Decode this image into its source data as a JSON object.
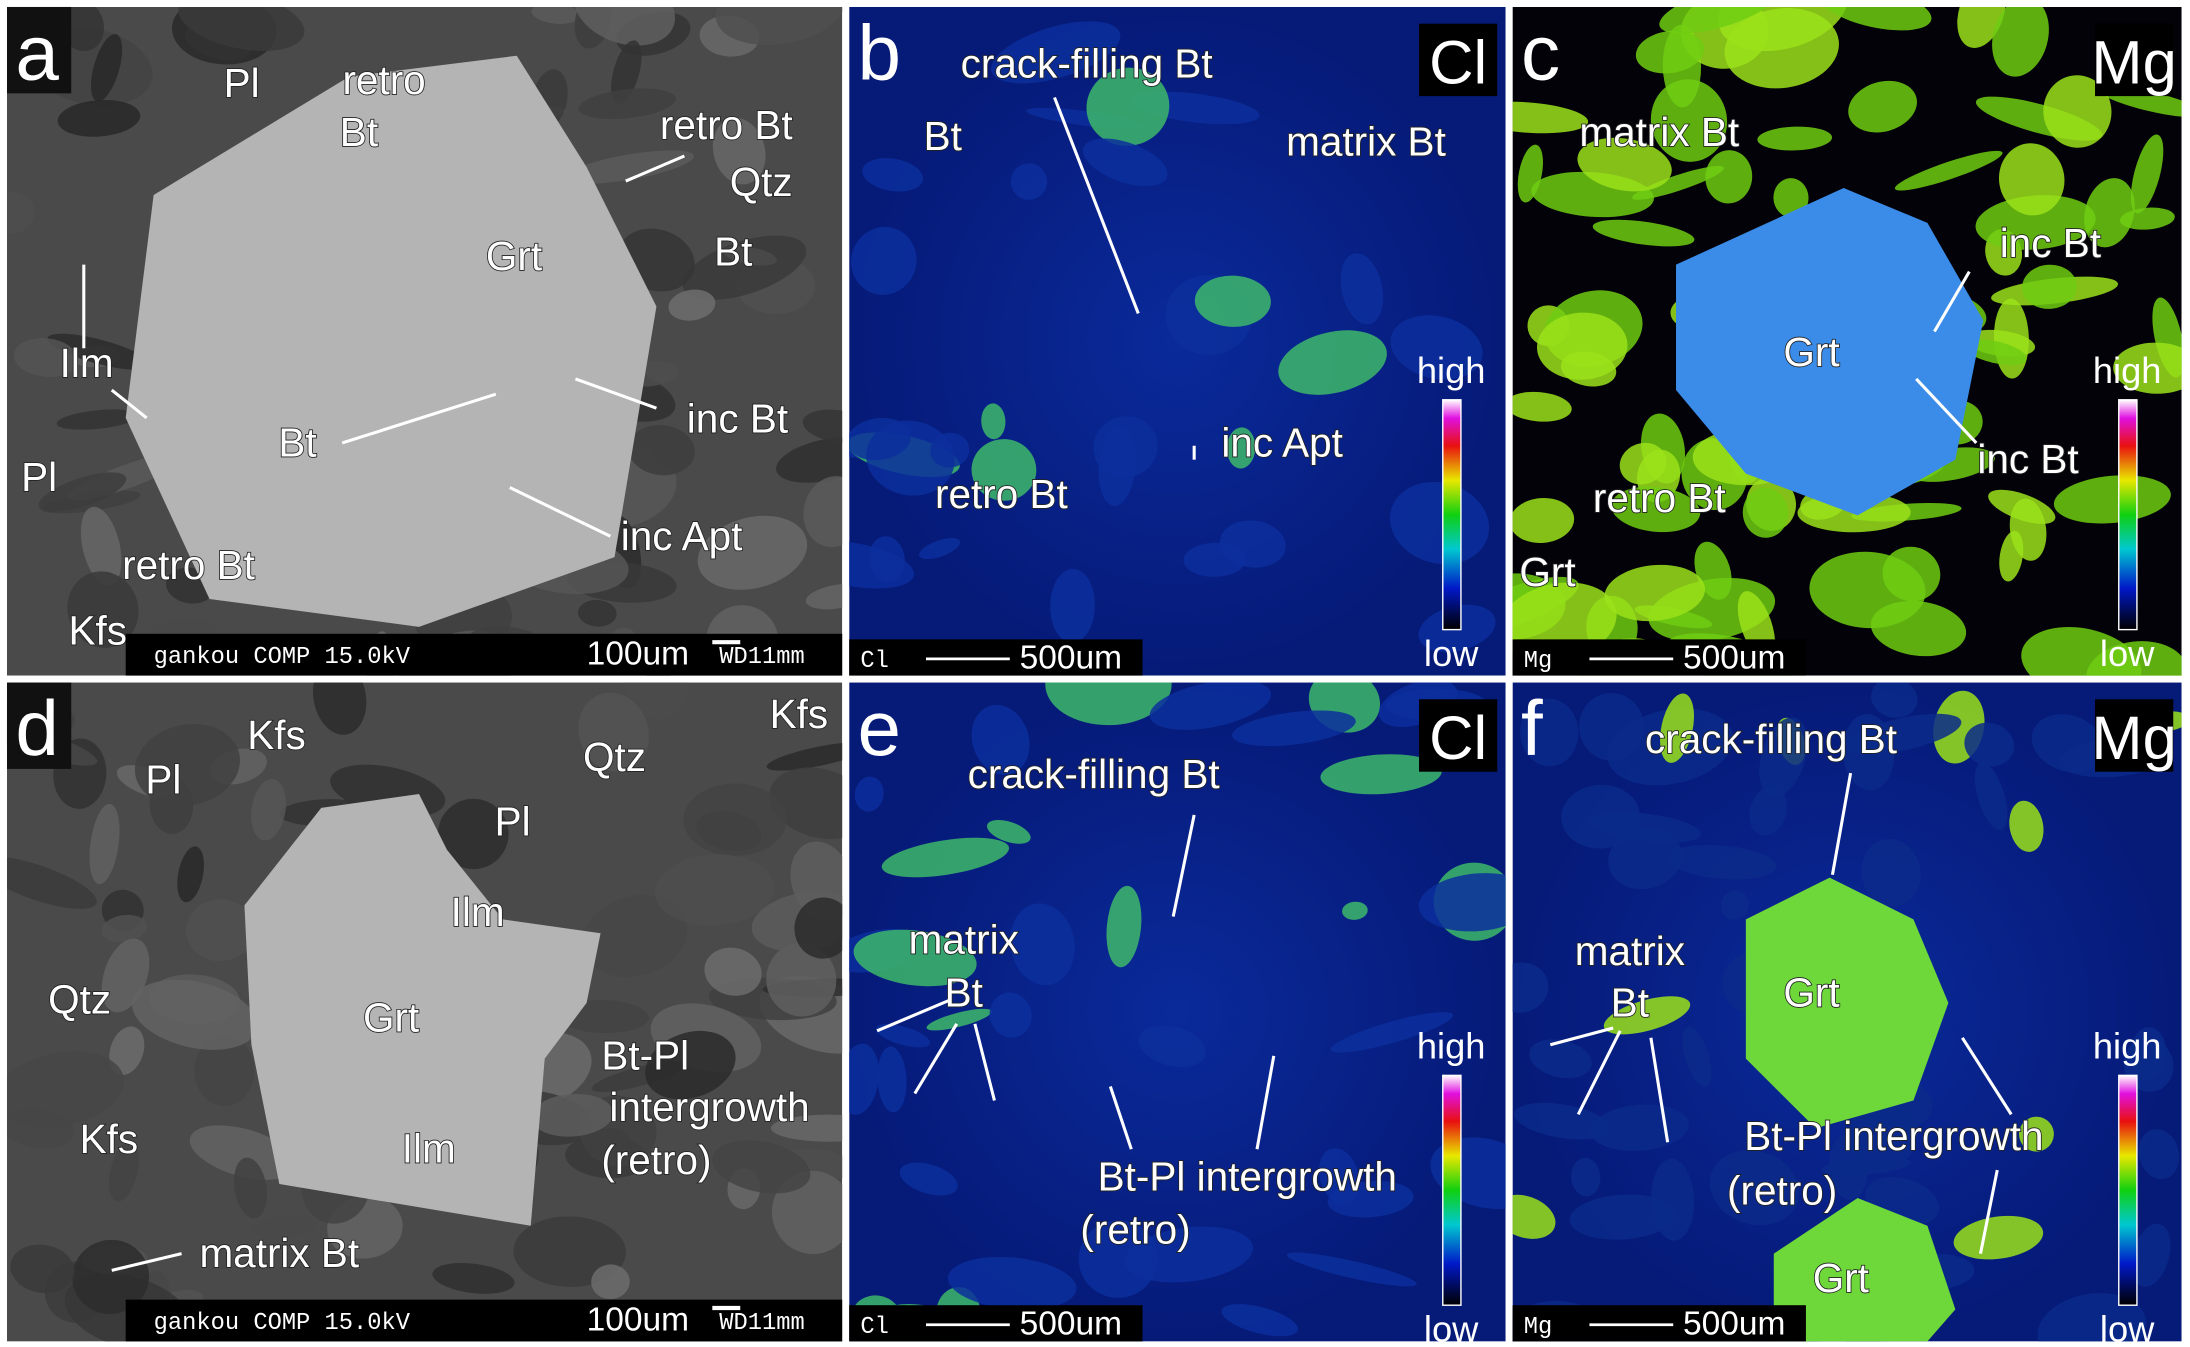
{
  "panels": [
    {
      "letter": "a",
      "labels": [
        "Pl",
        "retro",
        "Bt",
        "retro Bt",
        "Qtz",
        "Bt",
        "Grt",
        "Ilm",
        "Bt",
        "inc Bt",
        "Pl",
        "inc Apt",
        "retro Bt",
        "Kfs"
      ],
      "info": "gankou COMP  15.0kV",
      "scale": "100um",
      "wd": "WD11mm"
    },
    {
      "letter": "b",
      "element": "Cl",
      "labels": [
        "crack-filling Bt",
        "Bt",
        "matrix Bt",
        "inc Apt",
        "retro Bt"
      ],
      "map_label": "Cl",
      "scale": "500um",
      "high": "high",
      "low": "low"
    },
    {
      "letter": "c",
      "element": "Mg",
      "labels": [
        "matrix Bt",
        "inc Bt",
        "Grt",
        "inc Bt",
        "retro Bt",
        "Grt"
      ],
      "map_label": "Mg",
      "scale": "500um",
      "high": "high",
      "low": "low"
    },
    {
      "letter": "d",
      "labels": [
        "Kfs",
        "Kfs",
        "Pl",
        "Qtz",
        "Pl",
        "Ilm",
        "Qtz",
        "Grt",
        "Bt-Pl",
        "intergrowth",
        "(retro)",
        "Kfs",
        "Ilm",
        "matrix Bt"
      ],
      "info": "gankou COMP  15.0kV",
      "scale": "100um",
      "wd": "WD11mm"
    },
    {
      "letter": "e",
      "element": "Cl",
      "labels": [
        "crack-filling Bt",
        "matrix",
        "Bt",
        "Bt-Pl intergrowth",
        "(retro)"
      ],
      "map_label": "Cl",
      "scale": "500um",
      "high": "high",
      "low": "low"
    },
    {
      "letter": "f",
      "element": "Mg",
      "labels": [
        "crack-filling Bt",
        "matrix",
        "Bt",
        "Grt",
        "Bt-Pl intergrowth",
        "(retro)",
        "Grt"
      ],
      "map_label": "Mg",
      "scale": "500um",
      "high": "high",
      "low": "low"
    }
  ]
}
